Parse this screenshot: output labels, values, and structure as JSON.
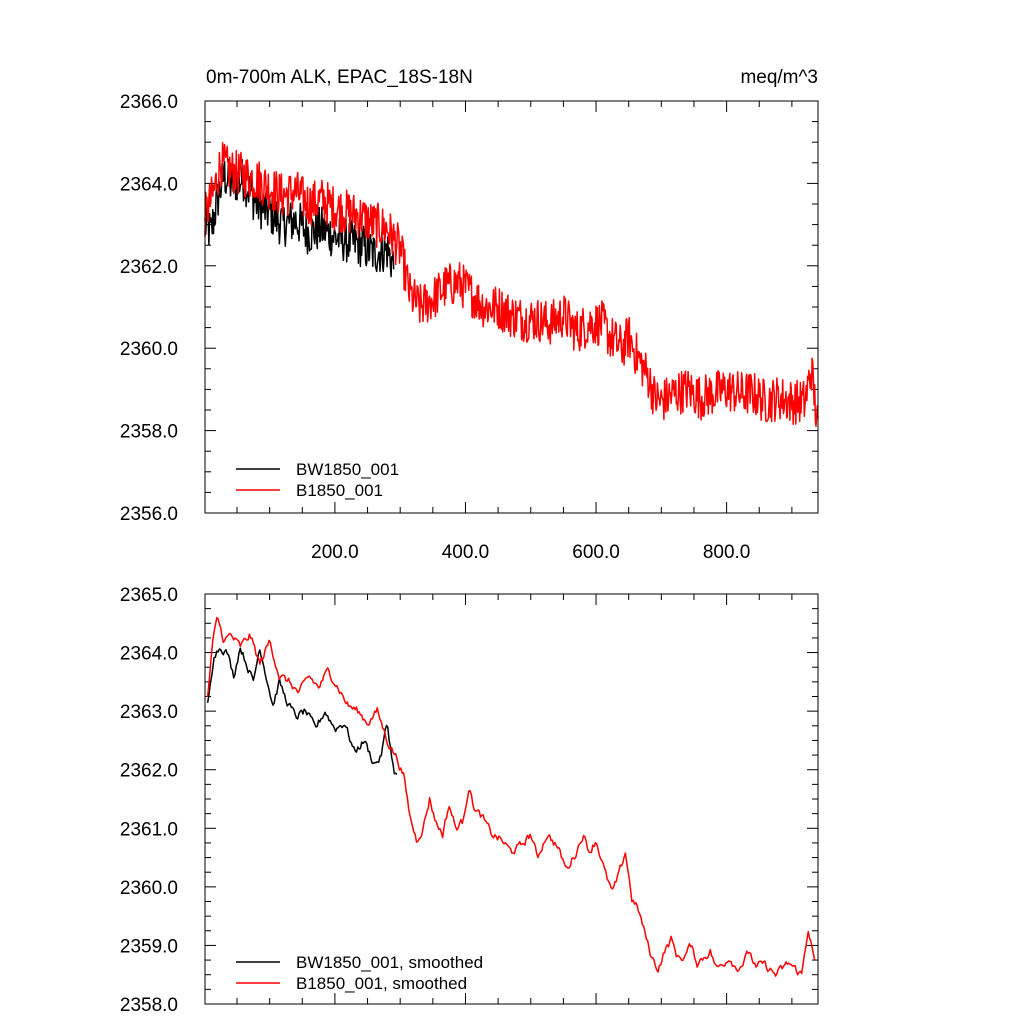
{
  "chart_data": [
    {
      "type": "line",
      "title_left": "0m-700m ALK, EPAC_18S-18N",
      "title_right": "meq/m^3",
      "xlabel": "",
      "ylabel": "",
      "xlim": [
        1,
        940
      ],
      "ylim": [
        2356.0,
        2366.0
      ],
      "yticks": [
        "2356.0",
        "2358.0",
        "2360.0",
        "2362.0",
        "2364.0",
        "2366.0"
      ],
      "xticks": [
        "200.0",
        "400.0",
        "600.0",
        "800.0"
      ],
      "legend_position": "lower-left",
      "noise": 0.55,
      "series": [
        {
          "name": "BW1850_001",
          "color": "#000000",
          "anchors": [
            [
              1,
              2363.0
            ],
            [
              10,
              2362.8
            ],
            [
              20,
              2363.6
            ],
            [
              30,
              2364.2
            ],
            [
              40,
              2364.0
            ],
            [
              60,
              2364.1
            ],
            [
              80,
              2363.5
            ],
            [
              100,
              2363.3
            ],
            [
              120,
              2363.0
            ],
            [
              140,
              2363.1
            ],
            [
              160,
              2362.8
            ],
            [
              180,
              2362.9
            ],
            [
              200,
              2362.7
            ],
            [
              220,
              2362.6
            ],
            [
              240,
              2362.5
            ],
            [
              260,
              2362.3
            ],
            [
              280,
              2362.4
            ],
            [
              290,
              2362.0
            ]
          ]
        },
        {
          "name": "B1850_001",
          "color": "#ff0000",
          "anchors": [
            [
              1,
              2363.2
            ],
            [
              15,
              2363.8
            ],
            [
              25,
              2364.5
            ],
            [
              40,
              2364.3
            ],
            [
              60,
              2364.2
            ],
            [
              80,
              2364.1
            ],
            [
              100,
              2363.9
            ],
            [
              120,
              2363.7
            ],
            [
              140,
              2363.8
            ],
            [
              160,
              2363.5
            ],
            [
              180,
              2363.6
            ],
            [
              200,
              2363.4
            ],
            [
              220,
              2363.3
            ],
            [
              240,
              2363.2
            ],
            [
              260,
              2363.0
            ],
            [
              280,
              2362.9
            ],
            [
              300,
              2362.4
            ],
            [
              315,
              2361.3
            ],
            [
              330,
              2361.0
            ],
            [
              350,
              2361.2
            ],
            [
              370,
              2361.5
            ],
            [
              390,
              2361.6
            ],
            [
              410,
              2361.3
            ],
            [
              430,
              2361.0
            ],
            [
              450,
              2361.0
            ],
            [
              470,
              2360.8
            ],
            [
              490,
              2360.7
            ],
            [
              510,
              2360.7
            ],
            [
              530,
              2360.6
            ],
            [
              550,
              2360.8
            ],
            [
              570,
              2360.4
            ],
            [
              590,
              2360.6
            ],
            [
              610,
              2360.6
            ],
            [
              620,
              2360.3
            ],
            [
              640,
              2360.0
            ],
            [
              650,
              2360.3
            ],
            [
              660,
              2359.9
            ],
            [
              680,
              2359.3
            ],
            [
              690,
              2358.8
            ],
            [
              700,
              2358.7
            ],
            [
              720,
              2358.9
            ],
            [
              740,
              2359.0
            ],
            [
              760,
              2358.8
            ],
            [
              780,
              2358.9
            ],
            [
              800,
              2359.0
            ],
            [
              820,
              2358.9
            ],
            [
              840,
              2358.9
            ],
            [
              860,
              2358.7
            ],
            [
              880,
              2358.8
            ],
            [
              900,
              2358.7
            ],
            [
              920,
              2358.7
            ],
            [
              930,
              2359.5
            ],
            [
              940,
              2358.0
            ]
          ]
        }
      ]
    },
    {
      "type": "line",
      "xlabel": "",
      "ylabel": "",
      "xlim": [
        1,
        940
      ],
      "ylim": [
        2358.0,
        2365.0
      ],
      "yticks": [
        "2358.0",
        "2359.0",
        "2360.0",
        "2361.0",
        "2362.0",
        "2363.0",
        "2364.0",
        "2365.0"
      ],
      "legend_position": "lower-left",
      "noise": 0.12,
      "series": [
        {
          "name": "BW1850_001, smoothed",
          "color": "#000000",
          "anchors": [
            [
              5,
              2363.1
            ],
            [
              10,
              2363.5
            ],
            [
              15,
              2364.0
            ],
            [
              25,
              2364.1
            ],
            [
              35,
              2364.0
            ],
            [
              45,
              2363.6
            ],
            [
              55,
              2364.1
            ],
            [
              65,
              2363.8
            ],
            [
              75,
              2363.5
            ],
            [
              85,
              2364.1
            ],
            [
              95,
              2363.6
            ],
            [
              105,
              2363.1
            ],
            [
              115,
              2363.5
            ],
            [
              125,
              2363.2
            ],
            [
              140,
              2362.9
            ],
            [
              155,
              2363.0
            ],
            [
              170,
              2362.7
            ],
            [
              185,
              2363.0
            ],
            [
              200,
              2362.7
            ],
            [
              215,
              2362.8
            ],
            [
              230,
              2362.3
            ],
            [
              245,
              2362.5
            ],
            [
              260,
              2362.1
            ],
            [
              270,
              2362.2
            ],
            [
              280,
              2362.8
            ],
            [
              290,
              2362.0
            ],
            [
              295,
              2361.9
            ]
          ]
        },
        {
          "name": "B1850_001, smoothed",
          "color": "#ff0000",
          "anchors": [
            [
              5,
              2363.2
            ],
            [
              12,
              2364.1
            ],
            [
              20,
              2364.6
            ],
            [
              30,
              2364.2
            ],
            [
              40,
              2364.3
            ],
            [
              55,
              2364.1
            ],
            [
              70,
              2364.3
            ],
            [
              85,
              2363.8
            ],
            [
              100,
              2364.2
            ],
            [
              115,
              2363.6
            ],
            [
              130,
              2363.5
            ],
            [
              145,
              2363.3
            ],
            [
              160,
              2363.6
            ],
            [
              175,
              2363.4
            ],
            [
              190,
              2363.7
            ],
            [
              205,
              2363.4
            ],
            [
              220,
              2363.1
            ],
            [
              235,
              2363.0
            ],
            [
              250,
              2362.8
            ],
            [
              265,
              2363.0
            ],
            [
              280,
              2362.5
            ],
            [
              295,
              2362.2
            ],
            [
              305,
              2361.9
            ],
            [
              315,
              2361.2
            ],
            [
              325,
              2360.8
            ],
            [
              335,
              2361.0
            ],
            [
              345,
              2361.5
            ],
            [
              355,
              2361.1
            ],
            [
              365,
              2360.9
            ],
            [
              375,
              2361.4
            ],
            [
              385,
              2361.0
            ],
            [
              395,
              2361.1
            ],
            [
              405,
              2361.7
            ],
            [
              415,
              2361.3
            ],
            [
              425,
              2361.2
            ],
            [
              440,
              2360.9
            ],
            [
              455,
              2360.8
            ],
            [
              470,
              2360.6
            ],
            [
              485,
              2360.7
            ],
            [
              500,
              2360.9
            ],
            [
              510,
              2360.5
            ],
            [
              525,
              2360.9
            ],
            [
              540,
              2360.7
            ],
            [
              555,
              2360.3
            ],
            [
              570,
              2360.6
            ],
            [
              580,
              2360.9
            ],
            [
              590,
              2360.6
            ],
            [
              600,
              2360.8
            ],
            [
              615,
              2360.2
            ],
            [
              625,
              2359.9
            ],
            [
              635,
              2360.2
            ],
            [
              645,
              2360.6
            ],
            [
              655,
              2359.8
            ],
            [
              665,
              2359.6
            ],
            [
              675,
              2359.2
            ],
            [
              685,
              2358.8
            ],
            [
              695,
              2358.6
            ],
            [
              705,
              2358.9
            ],
            [
              715,
              2359.1
            ],
            [
              725,
              2358.8
            ],
            [
              735,
              2358.8
            ],
            [
              745,
              2359.0
            ],
            [
              755,
              2358.7
            ],
            [
              765,
              2358.8
            ],
            [
              775,
              2358.9
            ],
            [
              785,
              2358.6
            ],
            [
              795,
              2358.7
            ],
            [
              805,
              2358.8
            ],
            [
              815,
              2358.6
            ],
            [
              825,
              2358.7
            ],
            [
              835,
              2358.9
            ],
            [
              845,
              2358.6
            ],
            [
              855,
              2358.7
            ],
            [
              865,
              2358.6
            ],
            [
              875,
              2358.5
            ],
            [
              885,
              2358.6
            ],
            [
              895,
              2358.7
            ],
            [
              905,
              2358.6
            ],
            [
              915,
              2358.5
            ],
            [
              925,
              2359.3
            ],
            [
              935,
              2358.7
            ]
          ]
        }
      ]
    }
  ]
}
